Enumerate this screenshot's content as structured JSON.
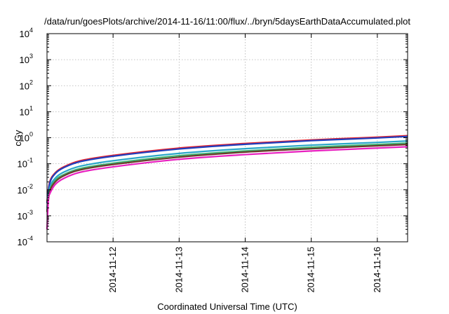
{
  "chart_data": {
    "type": "line",
    "title": "/data/run/goesPlots/archive/2014-11-16/11:00/flux/../bryn/5daysEarthDataAccumulated.plot",
    "xlabel": "Coordinated Universal Time (UTC)",
    "ylabel": "cGy",
    "yscale": "log",
    "ylim": [
      0.0001,
      10000
    ],
    "xlim": [
      "2014-11-11T00:00",
      "2014-11-16T11:00"
    ],
    "x_ticks": [
      "2014-11-12",
      "2014-11-13",
      "2014-11-14",
      "2014-11-15",
      "2014-11-16"
    ],
    "y_ticks": [
      {
        "base": "10",
        "exp": "-4",
        "value": 0.0001
      },
      {
        "base": "10",
        "exp": "-3",
        "value": 0.001
      },
      {
        "base": "10",
        "exp": "-2",
        "value": 0.01
      },
      {
        "base": "10",
        "exp": "-1",
        "value": 0.1
      },
      {
        "base": "10",
        "exp": "0",
        "value": 1
      },
      {
        "base": "10",
        "exp": "1",
        "value": 10
      },
      {
        "base": "10",
        "exp": "2",
        "value": 100
      },
      {
        "base": "10",
        "exp": "3",
        "value": 1000
      },
      {
        "base": "10",
        "exp": "4",
        "value": 10000
      }
    ],
    "grid": true,
    "legend": "none",
    "series": [
      {
        "color": "#e8202a",
        "final": 1.2,
        "points": [
          [
            "2014-11-11T00:00",
            0.0035
          ],
          [
            "2014-11-11T01:00",
            0.02
          ],
          [
            "2014-11-11T03:00",
            0.045
          ],
          [
            "2014-11-11T06:00",
            0.075
          ],
          [
            "2014-11-11T12:00",
            0.13
          ],
          [
            "2014-11-12T00:00",
            0.21
          ],
          [
            "2014-11-13T00:00",
            0.4
          ],
          [
            "2014-11-14T00:00",
            0.6
          ],
          [
            "2014-11-15T00:00",
            0.82
          ],
          [
            "2014-11-16T00:00",
            1.05
          ],
          [
            "2014-11-16T11:00",
            1.2
          ]
        ]
      },
      {
        "color": "#1f3fbf",
        "final": 1.12,
        "points": [
          [
            "2014-11-11T00:00",
            0.003
          ],
          [
            "2014-11-11T01:00",
            0.018
          ],
          [
            "2014-11-11T03:00",
            0.042
          ],
          [
            "2014-11-11T06:00",
            0.07
          ],
          [
            "2014-11-11T12:00",
            0.12
          ],
          [
            "2014-11-12T00:00",
            0.195
          ],
          [
            "2014-11-13T00:00",
            0.37
          ],
          [
            "2014-11-14T00:00",
            0.56
          ],
          [
            "2014-11-15T00:00",
            0.77
          ],
          [
            "2014-11-16T00:00",
            0.98
          ],
          [
            "2014-11-16T11:00",
            1.12
          ]
        ]
      },
      {
        "color": "#2aa6c8",
        "final": 0.75,
        "points": [
          [
            "2014-11-11T00:00",
            0.002
          ],
          [
            "2014-11-11T01:00",
            0.012
          ],
          [
            "2014-11-11T03:00",
            0.028
          ],
          [
            "2014-11-11T06:00",
            0.047
          ],
          [
            "2014-11-11T12:00",
            0.08
          ],
          [
            "2014-11-12T00:00",
            0.13
          ],
          [
            "2014-11-13T00:00",
            0.25
          ],
          [
            "2014-11-14T00:00",
            0.38
          ],
          [
            "2014-11-15T00:00",
            0.52
          ],
          [
            "2014-11-16T00:00",
            0.66
          ],
          [
            "2014-11-16T11:00",
            0.75
          ]
        ]
      },
      {
        "color": "#3cb371",
        "final": 0.62,
        "points": [
          [
            "2014-11-11T00:00",
            0.0016
          ],
          [
            "2014-11-11T01:00",
            0.0095
          ],
          [
            "2014-11-11T03:00",
            0.023
          ],
          [
            "2014-11-11T06:00",
            0.038
          ],
          [
            "2014-11-11T12:00",
            0.065
          ],
          [
            "2014-11-12T00:00",
            0.105
          ],
          [
            "2014-11-13T00:00",
            0.205
          ],
          [
            "2014-11-14T00:00",
            0.31
          ],
          [
            "2014-11-15T00:00",
            0.43
          ],
          [
            "2014-11-16T00:00",
            0.55
          ],
          [
            "2014-11-16T11:00",
            0.62
          ]
        ]
      },
      {
        "color": "#6b3a2a",
        "final": 0.55,
        "points": [
          [
            "2014-11-11T00:00",
            0.0014
          ],
          [
            "2014-11-11T01:00",
            0.0085
          ],
          [
            "2014-11-11T03:00",
            0.02
          ],
          [
            "2014-11-11T06:00",
            0.034
          ],
          [
            "2014-11-11T12:00",
            0.058
          ],
          [
            "2014-11-12T00:00",
            0.094
          ],
          [
            "2014-11-13T00:00",
            0.18
          ],
          [
            "2014-11-14T00:00",
            0.28
          ],
          [
            "2014-11-15T00:00",
            0.38
          ],
          [
            "2014-11-16T00:00",
            0.49
          ],
          [
            "2014-11-16T11:00",
            0.55
          ]
        ]
      },
      {
        "color": "#e81fbf",
        "final": 0.45,
        "points": [
          [
            "2014-11-11T00:00",
            0.0003
          ],
          [
            "2014-11-11T00:30",
            0.004
          ],
          [
            "2014-11-11T01:00",
            0.007
          ],
          [
            "2014-11-11T03:00",
            0.016
          ],
          [
            "2014-11-11T06:00",
            0.027
          ],
          [
            "2014-11-11T12:00",
            0.047
          ],
          [
            "2014-11-12T00:00",
            0.076
          ],
          [
            "2014-11-13T00:00",
            0.148
          ],
          [
            "2014-11-14T00:00",
            0.225
          ],
          [
            "2014-11-15T00:00",
            0.31
          ],
          [
            "2014-11-16T00:00",
            0.4
          ],
          [
            "2014-11-16T11:00",
            0.45
          ]
        ]
      }
    ]
  }
}
